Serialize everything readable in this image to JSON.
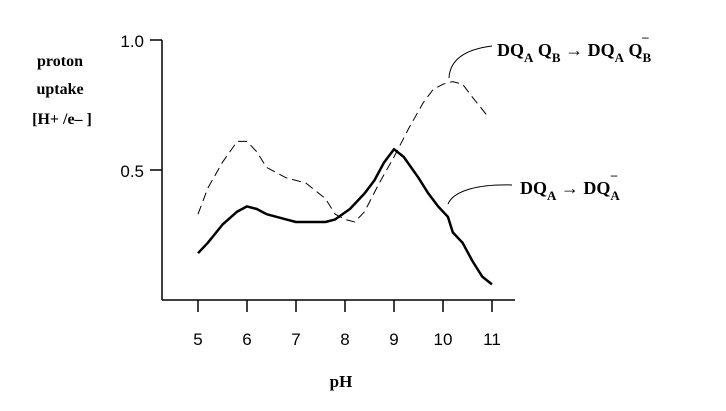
{
  "chart_data": {
    "type": "line",
    "title": "",
    "xlabel": "pH",
    "ylabel_lines": [
      "proton",
      "uptake",
      "[H+ /e– ]"
    ],
    "x_ticks": [
      "5",
      "6",
      "7",
      "8",
      "9",
      "10",
      "11"
    ],
    "y_ticks": [
      "1.0",
      "0.5"
    ],
    "xlim": [
      4.3,
      11.5
    ],
    "ylim": [
      0.0,
      1.0
    ],
    "grid": false,
    "series": [
      {
        "name": "DQA QB → DQA QB–",
        "style": "dashed",
        "x": [
          5.0,
          5.2,
          5.5,
          5.8,
          6.0,
          6.2,
          6.4,
          6.8,
          7.2,
          7.6,
          7.8,
          8.0,
          8.2,
          8.4,
          8.7,
          9.0,
          9.3,
          9.6,
          9.8,
          10.0,
          10.2,
          10.4,
          10.6,
          10.9
        ],
        "y": [
          0.33,
          0.43,
          0.53,
          0.61,
          0.61,
          0.57,
          0.51,
          0.47,
          0.45,
          0.39,
          0.33,
          0.31,
          0.3,
          0.34,
          0.45,
          0.55,
          0.66,
          0.76,
          0.81,
          0.83,
          0.84,
          0.83,
          0.78,
          0.71
        ]
      },
      {
        "name": "DQA → DQA–",
        "style": "solid",
        "x": [
          5.0,
          5.2,
          5.5,
          5.8,
          6.0,
          6.2,
          6.4,
          6.6,
          6.8,
          7.0,
          7.3,
          7.6,
          7.8,
          8.1,
          8.4,
          8.6,
          8.8,
          9.0,
          9.2,
          9.5,
          9.7,
          9.9,
          10.1,
          10.2,
          10.4,
          10.6,
          10.8,
          11.0
        ],
        "y": [
          0.18,
          0.22,
          0.29,
          0.34,
          0.36,
          0.35,
          0.33,
          0.32,
          0.31,
          0.3,
          0.3,
          0.3,
          0.31,
          0.35,
          0.41,
          0.46,
          0.53,
          0.58,
          0.55,
          0.47,
          0.41,
          0.36,
          0.32,
          0.26,
          0.22,
          0.15,
          0.09,
          0.06
        ]
      }
    ],
    "annotations": [
      {
        "target_series": 0,
        "text": "DQA QB → DQA QB–"
      },
      {
        "target_series": 1,
        "text": "DQA → DQA–"
      }
    ]
  }
}
